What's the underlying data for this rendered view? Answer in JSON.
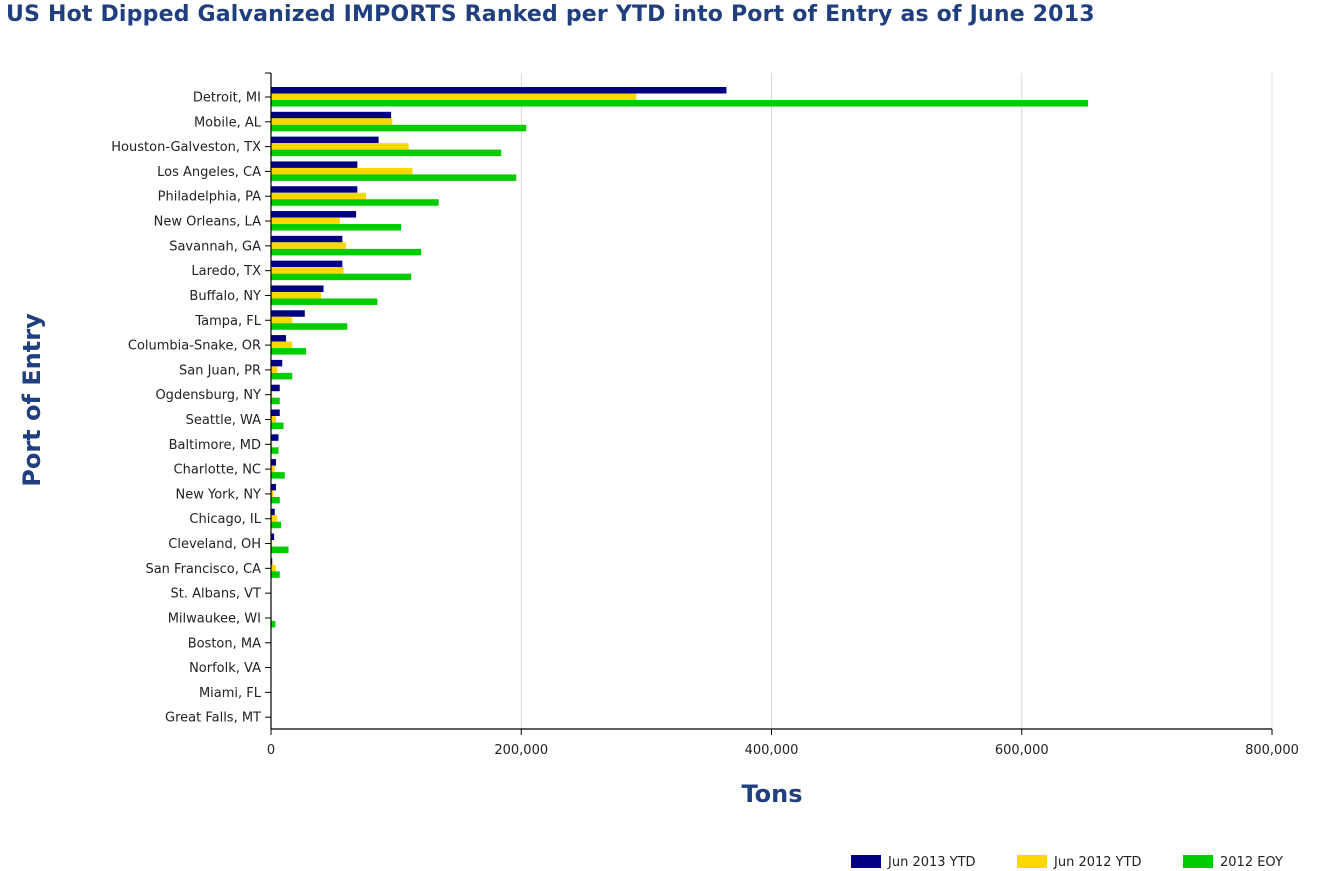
{
  "chart_data": {
    "type": "bar",
    "orientation": "horizontal",
    "title": "US Hot Dipped Galvanized IMPORTS Ranked per YTD into Port of Entry as of June 2013",
    "xlabel": "Tons",
    "ylabel": "Port of Entry",
    "xlim": [
      0,
      800000
    ],
    "x_ticks": [
      "0",
      "200,000",
      "400,000",
      "600,000",
      "800,000"
    ],
    "x_tick_values": [
      0,
      200000,
      400000,
      600000,
      800000
    ],
    "grid": "vertical",
    "legend_position": "bottom-right",
    "categories": [
      "Detroit, MI",
      "Mobile, AL",
      "Houston-Galveston, TX",
      "Los Angeles, CA",
      "Philadelphia, PA",
      "New Orleans, LA",
      "Savannah, GA",
      "Laredo, TX",
      "Buffalo, NY",
      "Tampa, FL",
      "Columbia-Snake, OR",
      "San Juan, PR",
      "Ogdensburg, NY",
      "Seattle, WA",
      "Baltimore, MD",
      "Charlotte, NC",
      "New York, NY",
      "Chicago, IL",
      "Cleveland, OH",
      "San Francisco, CA",
      "St. Albans, VT",
      "Milwaukee, WI",
      "Boston, MA",
      "Norfolk, VA",
      "Miami, FL",
      "Great Falls, MT"
    ],
    "series": [
      {
        "name": "Jun 2013 YTD",
        "color": "#000080",
        "values": [
          364000,
          96000,
          86000,
          69000,
          69000,
          68000,
          57000,
          57000,
          42000,
          27000,
          12000,
          9000,
          7000,
          7000,
          6000,
          4000,
          4000,
          3000,
          2500,
          1000,
          0,
          0,
          0,
          0,
          0,
          0
        ]
      },
      {
        "name": "Jun 2012 YTD",
        "color": "#ffd700",
        "values": [
          292000,
          97000,
          110000,
          113000,
          76000,
          55000,
          60000,
          58000,
          40000,
          17000,
          17000,
          5000,
          1000,
          4000,
          1000,
          3000,
          2000,
          5000,
          1000,
          4000,
          0,
          0,
          0,
          0,
          0,
          0
        ]
      },
      {
        "name": "2012 EOY",
        "color": "#00cc00",
        "values": [
          653000,
          204000,
          184000,
          196000,
          134000,
          104000,
          120000,
          112000,
          85000,
          61000,
          28000,
          17000,
          7000,
          10000,
          6000,
          11000,
          7000,
          8000,
          14000,
          7000,
          0,
          3500,
          0,
          0,
          0,
          0
        ]
      }
    ]
  }
}
